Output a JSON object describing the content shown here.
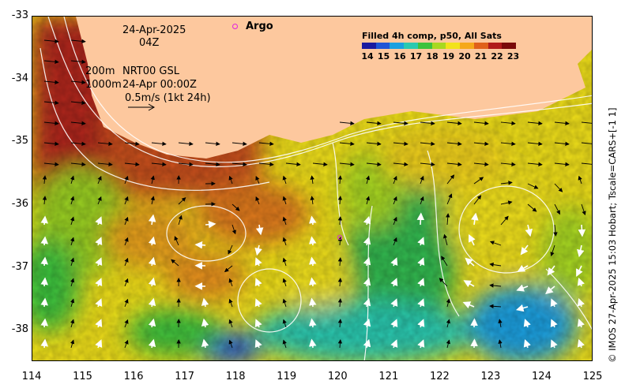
{
  "date_label": "24-Apr-2025",
  "time_label": "04Z",
  "depth_line_1": "200m",
  "depth_line_2": "1000m",
  "product_label": "NRT00 GSL",
  "analysis_time": "24-Apr 00:00Z",
  "scale_label": "0.5m/s (1kt 24h)",
  "argo_label": "Argo",
  "legend_title": "Filled 4h comp, p50, All Sats",
  "colorbar_ticks": [
    "14",
    "15",
    "16",
    "17",
    "18",
    "19",
    "20",
    "21",
    "22",
    "23"
  ],
  "colorbar_colors": [
    "#1a1aa0",
    "#1f55d6",
    "#1aa0e0",
    "#2ac9b0",
    "#3cc23c",
    "#a8d820",
    "#f2e21a",
    "#f5a81a",
    "#e0601a",
    "#b01a1a",
    "#7a0a0a"
  ],
  "credit": "© IMOS 27-Apr-2025 15:03 Hobart; Tscale=CARS+[-1 1]",
  "x_ticks": [
    "114",
    "115",
    "116",
    "117",
    "118",
    "119",
    "120",
    "121",
    "122",
    "123",
    "124",
    "125"
  ],
  "y_ticks": [
    "-33",
    "-34",
    "-35",
    "-36",
    "-37",
    "-38"
  ],
  "map_extent": {
    "lon": [
      114,
      125
    ],
    "lat": [
      -38.5,
      -33
    ]
  },
  "land_color": "#fdc89e"
}
